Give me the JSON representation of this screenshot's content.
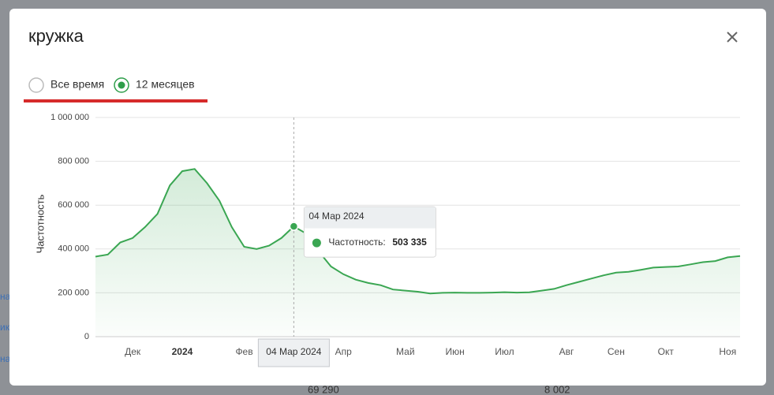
{
  "modal": {
    "title": "кружка",
    "options": [
      "Все время",
      "12 месяцев"
    ]
  },
  "background": {
    "texts": [
      "на",
      "ик",
      "на",
      "69 290",
      "8 002"
    ]
  },
  "chart_data": {
    "type": "line",
    "y_label": "Частотность",
    "categories": [
      null,
      null,
      null,
      "Дек",
      null,
      null,
      null,
      "2024",
      null,
      null,
      null,
      null,
      "Фев",
      null,
      null,
      null,
      "04 Мар 2024",
      null,
      null,
      null,
      "Апр",
      null,
      null,
      null,
      null,
      "Май",
      null,
      null,
      null,
      "Июн",
      null,
      null,
      null,
      "Июл",
      null,
      null,
      null,
      null,
      "Авг",
      null,
      null,
      null,
      "Сен",
      null,
      null,
      null,
      "Окт",
      null,
      null,
      null,
      null,
      "Ноя",
      null
    ],
    "series": [
      {
        "name": "Частотность",
        "color": "#3aa652",
        "values": [
          365000,
          375000,
          430000,
          450000,
          500000,
          560000,
          690000,
          755000,
          765000,
          700000,
          620000,
          500000,
          410000,
          400000,
          415000,
          450000,
          503335,
          470000,
          390000,
          320000,
          285000,
          260000,
          245000,
          235000,
          215000,
          210000,
          205000,
          197000,
          200000,
          201000,
          200000,
          200000,
          201000,
          203000,
          201000,
          202000,
          210000,
          218000,
          235000,
          250000,
          265000,
          280000,
          292000,
          296000,
          305000,
          315000,
          318000,
          320000,
          330000,
          340000,
          345000,
          362000,
          368000
        ]
      }
    ],
    "tooltip": {
      "label": "Частотность:",
      "value": 503335,
      "value_label": "503 335"
    },
    "ylim": [
      0,
      1000000
    ],
    "yticks": [
      0,
      {
        "value": 200000,
        "label": "200 000"
      },
      {
        "value": 400000,
        "label": "400 000"
      },
      {
        "value": 600000,
        "label": "600 000"
      },
      {
        "value": 800000,
        "label": "800 000"
      },
      {
        "value": 1000000,
        "label": "1 000 000"
      }
    ],
    "grid": true
  }
}
